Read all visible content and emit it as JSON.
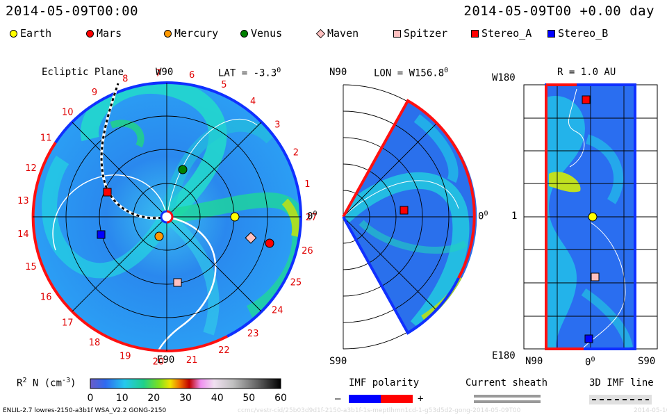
{
  "header": {
    "left_timestamp": "2014-05-09T00:00",
    "right_timestamp": "2014-05-09T00 +0.00 day"
  },
  "legend": [
    {
      "label": "Earth",
      "shape": "circle",
      "color": "#ffff00"
    },
    {
      "label": "Mars",
      "shape": "circle",
      "color": "#ff0000"
    },
    {
      "label": "Mercury",
      "shape": "circle",
      "color": "#ff9900"
    },
    {
      "label": "Venus",
      "shape": "circle",
      "color": "#008000"
    },
    {
      "label": "Maven",
      "shape": "diamond",
      "color": "#ffc0c0"
    },
    {
      "label": "Spitzer",
      "shape": "square",
      "color": "#ffc0c0"
    },
    {
      "label": "Stereo_A",
      "shape": "square",
      "color": "#ff0000"
    },
    {
      "label": "Stereo_B",
      "shape": "square",
      "color": "#0000ff"
    }
  ],
  "ecliptic_panel": {
    "title": "Ecliptic Plane",
    "lat_label": "LAT = -3.3",
    "lat_degree": "0",
    "top_label": "W90",
    "bottom_label": "E90",
    "right_label": "0",
    "right_degree": "0",
    "rotation_numbers": [
      "1",
      "2",
      "3",
      "4",
      "5",
      "6",
      "7",
      "8",
      "9",
      "10",
      "11",
      "12",
      "13",
      "14",
      "15",
      "16",
      "17",
      "18",
      "19",
      "20",
      "21",
      "22",
      "23",
      "24",
      "25",
      "26",
      "27"
    ]
  },
  "meridional_panel": {
    "title": "LON = W156.8",
    "title_degree": "0",
    "top_label": "N90",
    "bottom_label": "S90",
    "right_label": "0",
    "right_degree": "0"
  },
  "radial_panel": {
    "title": "R = 1.0 AU",
    "top_left": "W180",
    "mid_left": "1",
    "bottom_left": "E180",
    "bottom_n": "N90",
    "bottom_mid": "0",
    "bottom_mid_degree": "0",
    "bottom_s": "S90"
  },
  "colorbar": {
    "label": "R",
    "label_sup": "2",
    "label_rest": " N (cm",
    "label_exp": "-3",
    "label_end": ")",
    "ticks": [
      "0",
      "10",
      "20",
      "30",
      "40",
      "50",
      "60"
    ]
  },
  "imf_polarity": {
    "title": "IMF polarity",
    "minus": "–",
    "plus": "+",
    "negative_color": "#0000ff",
    "positive_color": "#ff0000"
  },
  "current_sheath": {
    "title": "Current sheath"
  },
  "imf_line": {
    "title": "3D IMF line"
  },
  "footer": {
    "model_info": "ENLIL-2.7 lowres-2150-a3b1f WSA_V2.2 GONG-2150",
    "watermark": "ccmc/vestr-cid/25b03d9d1f-2150-a3b1f-1s-meptlhmn1cd-1-g53d5d2-gong-2014-05-09T00",
    "watermark_date": "2014-05-10"
  },
  "chart_data": [
    {
      "type": "heatmap",
      "title": "Ecliptic Plane",
      "description_values": "Solar wind density scaled R^2 N (cm^-3) on the ecliptic plane, polar view",
      "bodies": [
        {
          "name": "Earth",
          "angle_deg": 0,
          "r_au": 1.0
        },
        {
          "name": "Mars",
          "angle_deg": -12,
          "r_au": 1.55
        },
        {
          "name": "Mercury",
          "angle_deg": -140,
          "r_au": 0.18
        },
        {
          "name": "Venus",
          "angle_deg": 75,
          "r_au": 0.7
        },
        {
          "name": "Maven",
          "angle_deg": -10,
          "r_au": 1.4
        },
        {
          "name": "Spitzer",
          "angle_deg": -80,
          "r_au": 1.0
        },
        {
          "name": "Stereo_A",
          "angle_deg": 155,
          "r_au": 0.95
        },
        {
          "name": "Stereo_B",
          "angle_deg": -170,
          "r_au": 1.0
        }
      ]
    },
    {
      "type": "heatmap",
      "title": "LON = W156.8"
    },
    {
      "type": "heatmap",
      "title": "R = 1.0 AU"
    }
  ]
}
